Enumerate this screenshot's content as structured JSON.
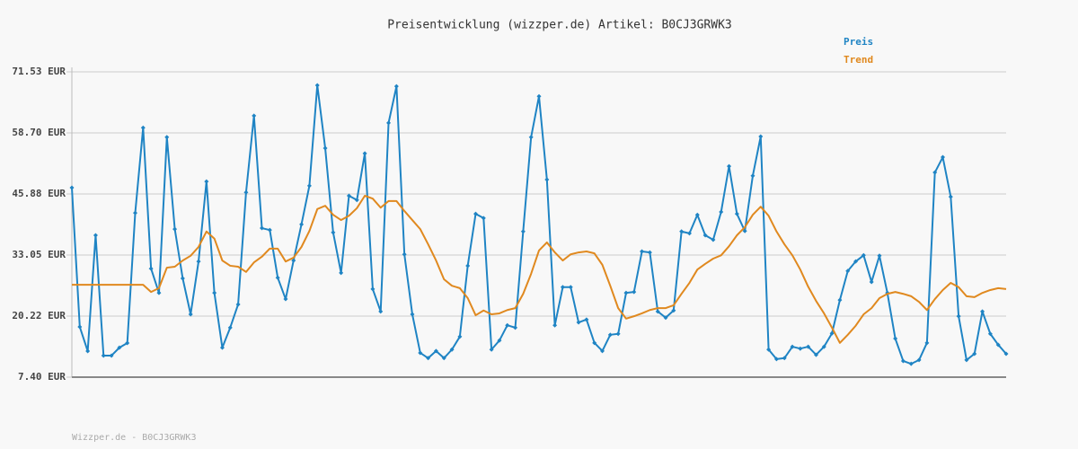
{
  "chart_data": {
    "type": "line",
    "title": "Preisentwicklung (wizzper.de) Artikel: B0CJ3GRWK3",
    "footer": "Wizzper.de - B0CJ3GRWK3",
    "ylim": [
      7.4,
      71.53
    ],
    "yticks": [
      {
        "value": 7.4,
        "label": "7.40 EUR"
      },
      {
        "value": 20.22,
        "label": "20.22 EUR"
      },
      {
        "value": 33.05,
        "label": "33.05 EUR"
      },
      {
        "value": 45.88,
        "label": "45.88 EUR"
      },
      {
        "value": 58.7,
        "label": "58.70 EUR"
      },
      {
        "value": 71.53,
        "label": "71.53 EUR"
      }
    ],
    "grid": true,
    "legend": "top-right",
    "series": [
      {
        "name": "Preis",
        "color": "#1f84c4",
        "markers": true,
        "values": [
          47.2,
          17.96,
          12.87,
          37.2,
          11.93,
          11.93,
          13.6,
          14.57,
          41.9,
          59.8,
          30.2,
          25.1,
          57.8,
          38.5,
          28.15,
          20.6,
          31.7,
          48.5,
          25.1,
          13.6,
          17.8,
          22.68,
          46.2,
          62.3,
          38.7,
          38.3,
          28.3,
          23.8,
          31.9,
          39.5,
          47.6,
          68.7,
          55.5,
          37.8,
          29.3,
          45.5,
          44.6,
          54.4,
          25.9,
          21.2,
          60.8,
          68.5,
          33.2,
          20.6,
          12.5,
          11.4,
          12.9,
          11.4,
          13.2,
          15.9,
          30.8,
          41.7,
          40.8,
          13.2,
          15.1,
          18.3,
          17.8,
          38.0,
          57.8,
          66.4,
          48.9,
          18.3,
          26.3,
          26.3,
          18.9,
          19.5,
          14.6,
          12.9,
          16.3,
          16.5,
          25.1,
          25.3,
          33.8,
          33.6,
          21.2,
          19.9,
          21.4,
          38.0,
          37.6,
          41.5,
          37.2,
          36.26,
          42.1,
          51.7,
          41.7,
          38.1,
          49.7,
          57.95,
          13.2,
          11.2,
          11.4,
          13.8,
          13.4,
          13.8,
          12.1,
          13.8,
          16.6,
          23.6,
          29.7,
          31.7,
          33.0,
          27.4,
          32.9,
          25.1,
          15.5,
          10.8,
          10.2,
          11.0,
          14.6,
          50.4,
          53.6,
          45.3,
          20.2,
          11.0,
          12.3,
          21.2,
          16.5,
          14.2,
          12.3
        ]
      },
      {
        "name": "Trend",
        "color": "#e0891f",
        "markers": false,
        "values": [
          26.8,
          26.8,
          26.8,
          26.8,
          26.8,
          26.8,
          26.8,
          26.8,
          26.8,
          26.8,
          25.3,
          26.1,
          30.4,
          30.6,
          31.9,
          32.9,
          34.75,
          38.0,
          36.5,
          31.9,
          30.8,
          30.6,
          29.5,
          31.5,
          32.7,
          34.4,
          34.4,
          31.7,
          32.5,
          34.75,
          38.1,
          42.7,
          43.4,
          41.5,
          40.4,
          41.3,
          42.9,
          45.5,
          44.9,
          43.0,
          44.4,
          44.4,
          42.3,
          40.4,
          38.5,
          35.3,
          31.9,
          27.96,
          26.6,
          26.1,
          24.0,
          20.4,
          21.4,
          20.6,
          20.8,
          21.5,
          21.9,
          24.9,
          29.1,
          34.0,
          35.7,
          33.6,
          31.9,
          33.2,
          33.6,
          33.8,
          33.4,
          31.0,
          26.6,
          21.9,
          19.7,
          20.2,
          20.8,
          21.5,
          21.9,
          21.9,
          22.5,
          24.9,
          27.2,
          30.0,
          31.2,
          32.3,
          33.0,
          34.9,
          37.2,
          38.9,
          41.5,
          43.2,
          41.3,
          38.0,
          35.3,
          33.0,
          30.0,
          26.4,
          23.4,
          20.8,
          17.8,
          14.6,
          16.3,
          18.2,
          20.6,
          21.9,
          24.0,
          24.9,
          25.3,
          24.9,
          24.4,
          23.2,
          21.5,
          23.8,
          25.7,
          27.2,
          26.3,
          24.4,
          24.2,
          25.1,
          25.7,
          26.1,
          25.9
        ]
      }
    ]
  }
}
